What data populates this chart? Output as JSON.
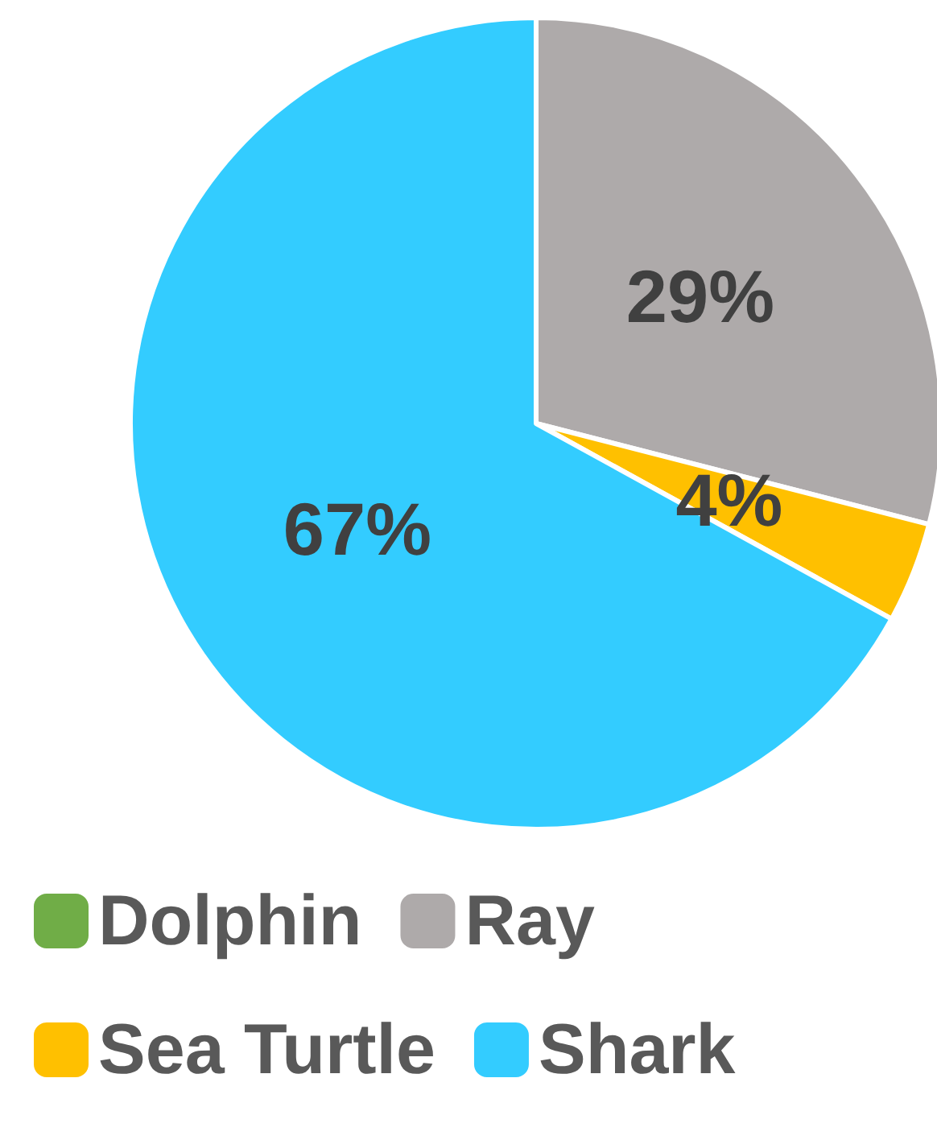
{
  "chart_data": {
    "type": "pie",
    "categories": [
      "Dolphin",
      "Ray",
      "Sea Turtle",
      "Shark"
    ],
    "values": [
      0,
      29,
      4,
      67
    ],
    "colors": [
      "#70ad47",
      "#aeaaaa",
      "#ffc000",
      "#33ccff"
    ],
    "value_labels": [
      null,
      "29%",
      "4%",
      "67%"
    ],
    "legend": "bottom"
  }
}
